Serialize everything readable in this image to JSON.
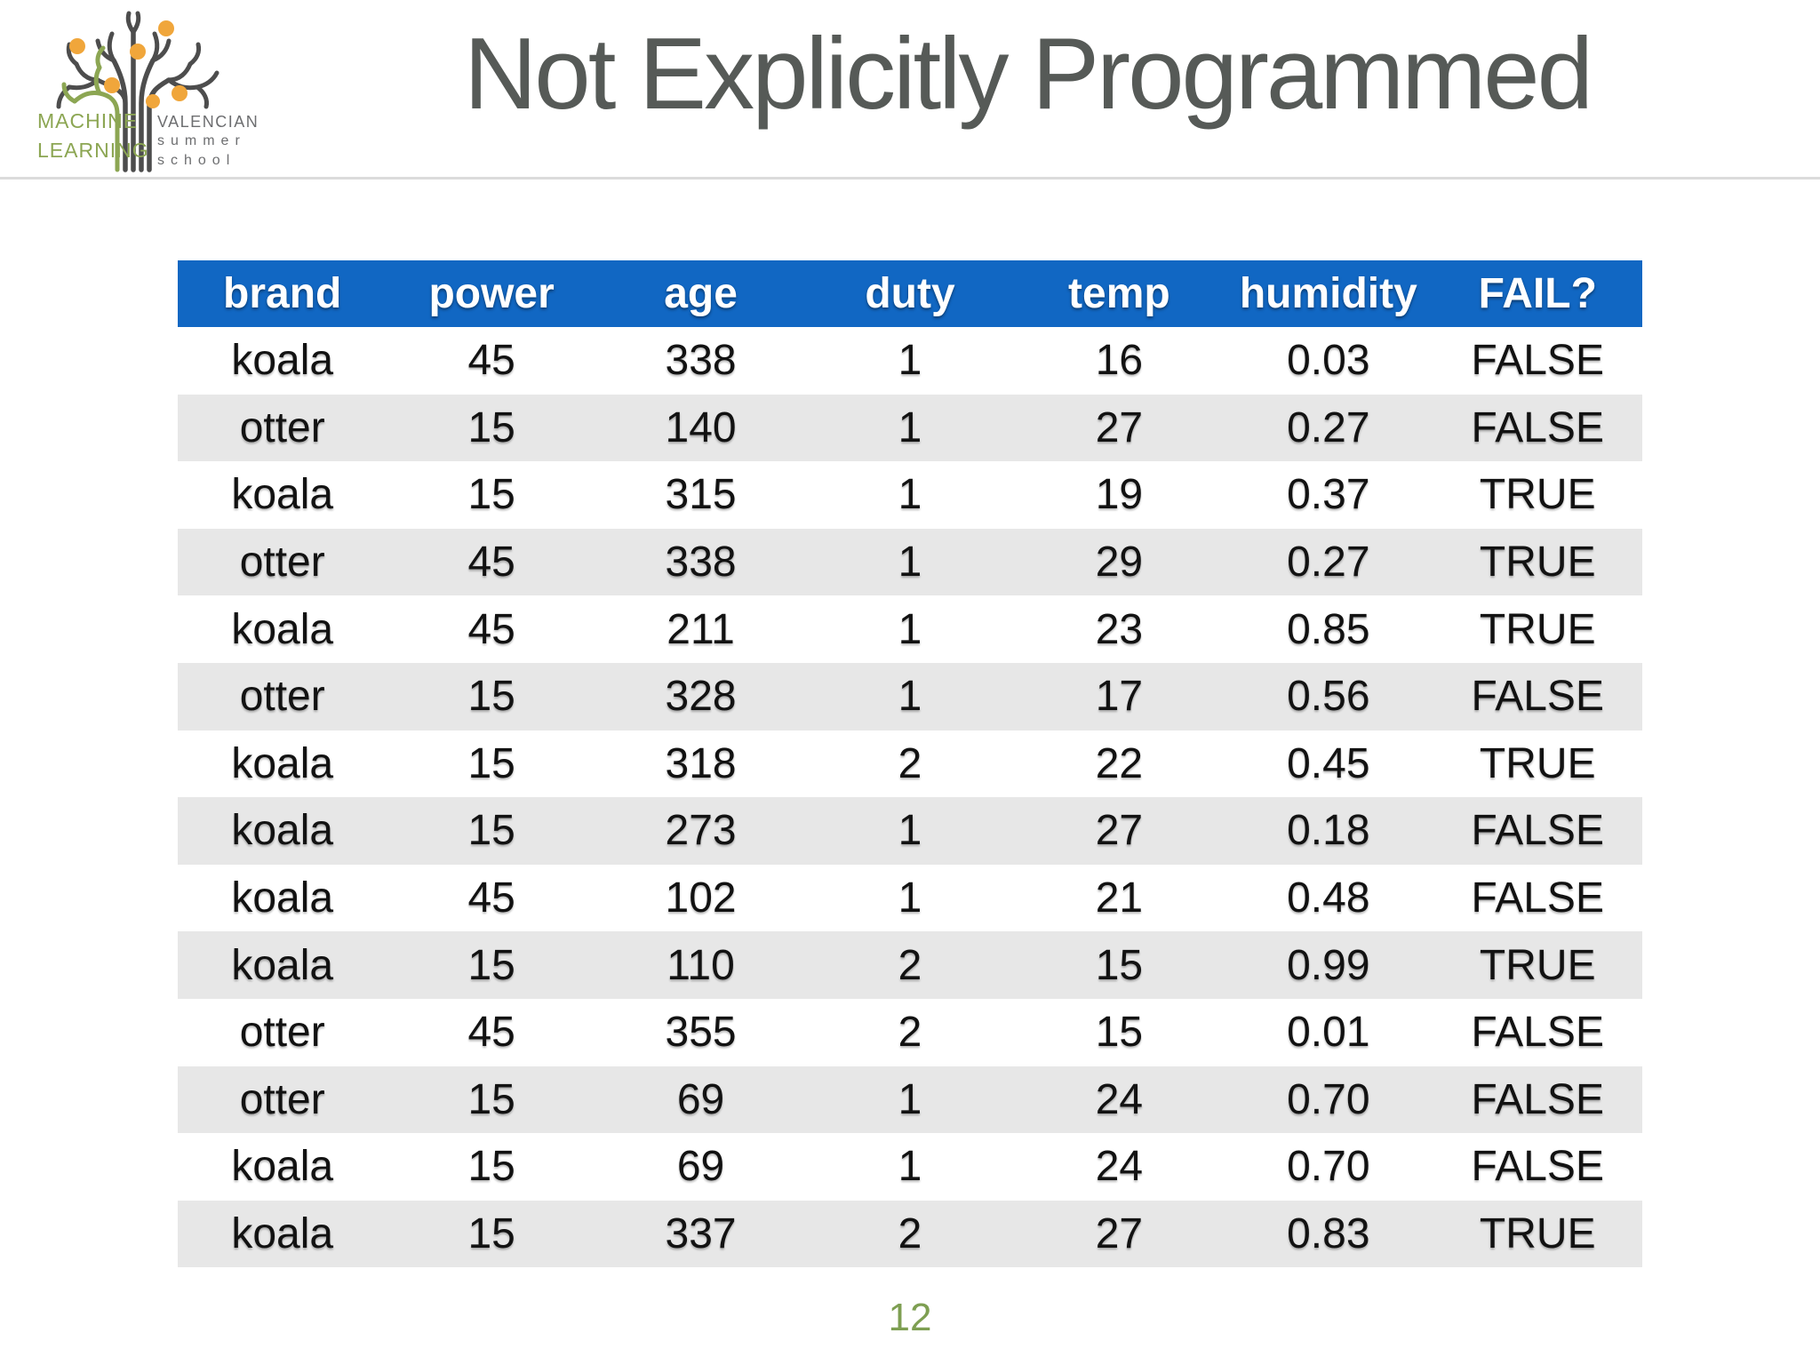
{
  "title": "Not Explicitly Programmed",
  "page_number": "12",
  "logo": {
    "left_line1": "MACHINE",
    "left_line2": "LEARNING",
    "right_line1": "VALENCIAN",
    "right_line2": "summer",
    "right_line3": "school"
  },
  "colors": {
    "header_blue": "#1167C3",
    "stripe_gray": "#E7E7E7",
    "title_gray": "#565A57",
    "logo_green": "#8CA653",
    "logo_gray": "#6D6E70",
    "fruit_orange": "#F0A63B",
    "branch_gray": "#4D4D4D",
    "page_number_green": "#7E9F52",
    "divider_gray": "#DBDBDB"
  },
  "table": {
    "columns": [
      "brand",
      "power",
      "age",
      "duty",
      "temp",
      "humidity",
      "FAIL?"
    ],
    "rows": [
      [
        "koala",
        "45",
        "338",
        "1",
        "16",
        "0.03",
        "FALSE"
      ],
      [
        "otter",
        "15",
        "140",
        "1",
        "27",
        "0.27",
        "FALSE"
      ],
      [
        "koala",
        "15",
        "315",
        "1",
        "19",
        "0.37",
        "TRUE"
      ],
      [
        "otter",
        "45",
        "338",
        "1",
        "29",
        "0.27",
        "TRUE"
      ],
      [
        "koala",
        "45",
        "211",
        "1",
        "23",
        "0.85",
        "TRUE"
      ],
      [
        "otter",
        "15",
        "328",
        "1",
        "17",
        "0.56",
        "FALSE"
      ],
      [
        "koala",
        "15",
        "318",
        "2",
        "22",
        "0.45",
        "TRUE"
      ],
      [
        "koala",
        "15",
        "273",
        "1",
        "27",
        "0.18",
        "FALSE"
      ],
      [
        "koala",
        "45",
        "102",
        "1",
        "21",
        "0.48",
        "FALSE"
      ],
      [
        "koala",
        "15",
        "110",
        "2",
        "15",
        "0.99",
        "TRUE"
      ],
      [
        "otter",
        "45",
        "355",
        "2",
        "15",
        "0.01",
        "FALSE"
      ],
      [
        "otter",
        "15",
        "69",
        "1",
        "24",
        "0.70",
        "FALSE"
      ],
      [
        "koala",
        "15",
        "69",
        "1",
        "24",
        "0.70",
        "FALSE"
      ],
      [
        "koala",
        "15",
        "337",
        "2",
        "27",
        "0.83",
        "TRUE"
      ]
    ]
  }
}
